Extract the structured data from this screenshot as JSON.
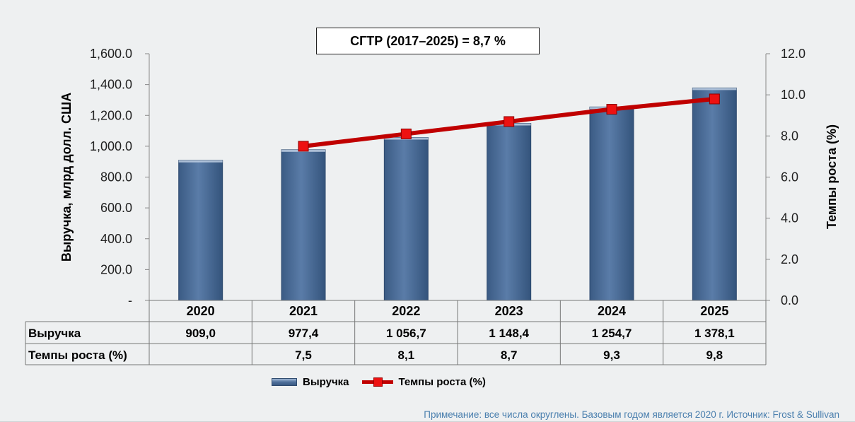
{
  "cagr_label": "СГТР (2017–2025) = 8,7 %",
  "note": "Примечание: все числа округлены. Базовым годом является 2020 г. Источник: Frost & Sullivan",
  "chart_data": {
    "type": "bar",
    "categories": [
      "2020",
      "2021",
      "2022",
      "2023",
      "2024",
      "2025"
    ],
    "series": [
      {
        "name": "Выручка",
        "kind": "bar",
        "axis": "left",
        "values": [
          909.0,
          977.4,
          1056.7,
          1148.4,
          1254.7,
          1378.1
        ]
      },
      {
        "name": "Темпы роста (%)",
        "kind": "line",
        "axis": "right",
        "values": [
          null,
          7.5,
          8.1,
          8.7,
          9.3,
          9.8
        ]
      }
    ],
    "ylabel": "Выручка, млрд долл. США",
    "y2label": "Темпы роста (%)",
    "ylim": [
      0,
      1600
    ],
    "y2lim": [
      0,
      12
    ],
    "yticks": [
      "-",
      "200.0",
      "400.0",
      "600.0",
      "800.0",
      "1,000.0",
      "1,200.0",
      "1,400.0",
      "1,600.0"
    ],
    "y2ticks": [
      "0.0",
      "2.0",
      "4.0",
      "6.0",
      "8.0",
      "10.0",
      "12.0"
    ],
    "table": {
      "rows": [
        {
          "label": "Выручка",
          "cells": [
            "909,0",
            "977,4",
            "1 056,7",
            "1 148,4",
            "1 254,7",
            "1 378,1"
          ]
        },
        {
          "label": "Темпы роста (%)",
          "cells": [
            "",
            "7,5",
            "8,1",
            "8,7",
            "9,3",
            "9,8"
          ]
        }
      ]
    },
    "grid": false,
    "legend_position": "bottom",
    "colors": {
      "bar": "#4e6f9a",
      "line": "#c00000",
      "marker": "#ee1111"
    }
  }
}
